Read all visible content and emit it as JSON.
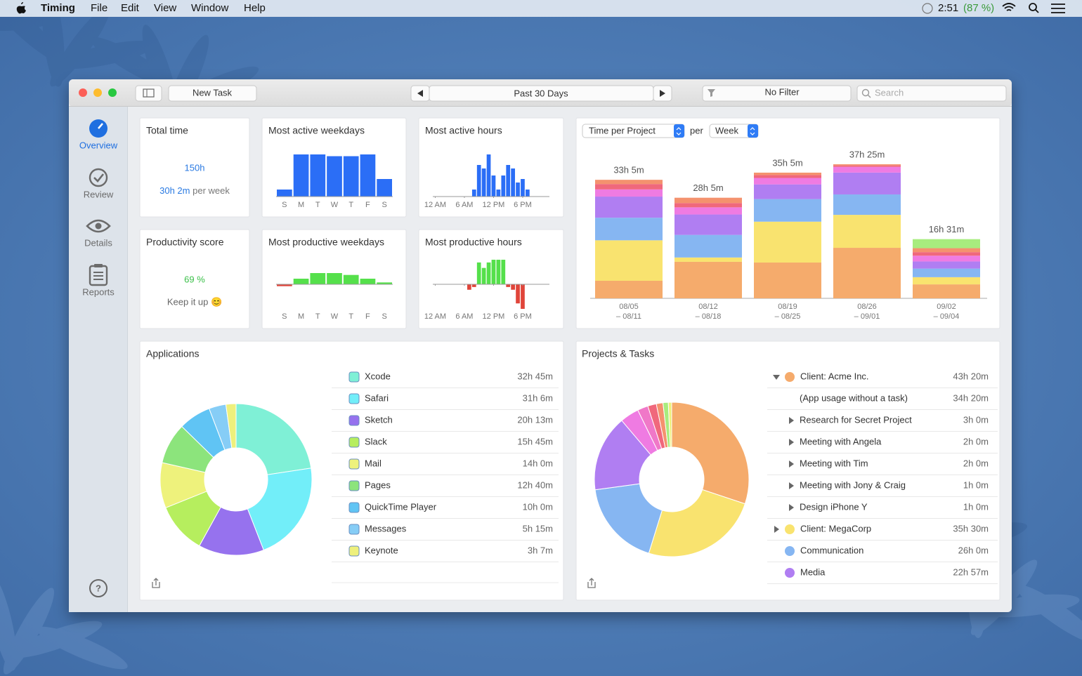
{
  "menubar": {
    "app": "Timing",
    "menus": [
      "File",
      "Edit",
      "View",
      "Window",
      "Help"
    ],
    "clock": "2:51",
    "battery": "(87 %)"
  },
  "toolbar": {
    "new_task": "New Task",
    "range": "Past 30 Days",
    "filter": "No Filter",
    "search": "Search"
  },
  "sidebar": {
    "items": [
      "Overview",
      "Review",
      "Details",
      "Reports"
    ],
    "selected": 0
  },
  "total_time": {
    "title": "Total time",
    "value": "150h",
    "per_week": "30h 2m",
    "per_week_unit": "per week"
  },
  "productivity": {
    "title": "Productivity score",
    "value": "69 %",
    "note": "Keep it up 😊"
  },
  "active_weekdays": {
    "type": "bar",
    "title": "Most active weekdays",
    "categories": [
      "S",
      "M",
      "T",
      "W",
      "T",
      "F",
      "S"
    ],
    "values": [
      4,
      24,
      24,
      23,
      23,
      24,
      10
    ],
    "color": "#2b6ef6"
  },
  "active_hours": {
    "type": "bar",
    "title": "Most active hours",
    "values": [
      0,
      0,
      0,
      0,
      0,
      0,
      0,
      0,
      2,
      9,
      8,
      12,
      6,
      2,
      6,
      9,
      8,
      4,
      5,
      2,
      0,
      0,
      0,
      0
    ],
    "xticks": [
      {
        "value": 0,
        "label": "12 AM"
      },
      {
        "value": 6,
        "label": "6 AM"
      },
      {
        "value": 12,
        "label": "12 PM"
      },
      {
        "value": 18,
        "label": "6 PM"
      }
    ],
    "color": "#2b6ef6"
  },
  "productive_weekdays": {
    "type": "bar",
    "title": "Most productive weekdays",
    "categories": [
      "S",
      "M",
      "T",
      "W",
      "T",
      "F",
      "S"
    ],
    "values": [
      -1,
      3,
      6,
      6,
      5,
      3,
      1
    ],
    "color": "#55e04b",
    "negative_color": "#e0453a"
  },
  "productive_hours": {
    "type": "bar",
    "title": "Most productive hours",
    "values": [
      0,
      0,
      0,
      0,
      0,
      0,
      0,
      -2,
      -1,
      8,
      6,
      8,
      9,
      9,
      9,
      -1,
      -2,
      -7,
      -9,
      0,
      0,
      0,
      0,
      0
    ],
    "xticks": [
      {
        "value": 0,
        "label": "12 AM"
      },
      {
        "value": 6,
        "label": "6 AM"
      },
      {
        "value": 12,
        "label": "12 PM"
      },
      {
        "value": 18,
        "label": "6 PM"
      }
    ],
    "color": "#55e04b",
    "negative_color": "#e0453a"
  },
  "weekly": {
    "type": "bar",
    "stacked": true,
    "metric": "Time per Project",
    "per": "per",
    "interval": "Week",
    "categories": [
      [
        "08/05",
        "– 08/11"
      ],
      [
        "08/12",
        "– 08/18"
      ],
      [
        "08/19",
        "– 08/25"
      ],
      [
        "08/26",
        "– 09/01"
      ],
      [
        "09/02",
        "– 09/04"
      ]
    ],
    "total_labels": [
      "33h 5m",
      "28h 5m",
      "35h 5m",
      "37h 25m",
      "16h 31m"
    ],
    "series": [
      {
        "color": "#f5ab6c",
        "values": [
          4.9,
          10.2,
          10.0,
          14.1,
          3.9
        ]
      },
      {
        "color": "#f9e36f",
        "values": [
          11.3,
          1.2,
          11.4,
          9.2,
          2.0
        ]
      },
      {
        "color": "#86b6f2",
        "values": [
          6.3,
          6.3,
          6.3,
          5.7,
          2.4
        ]
      },
      {
        "color": "#b07ef2",
        "values": [
          5.9,
          5.7,
          4.1,
          6.1,
          2.0
        ]
      },
      {
        "color": "#ef7be2",
        "values": [
          2.0,
          2.0,
          1.8,
          1.6,
          1.6
        ]
      },
      {
        "color": "#f0687c",
        "values": [
          1.5,
          1.2,
          0.8,
          0.4,
          1.0
        ]
      },
      {
        "color": "#f4926e",
        "values": [
          1.18,
          1.48,
          0.68,
          0.32,
          1.1
        ]
      },
      {
        "color": "#a8ec7e",
        "values": [
          0,
          0,
          0,
          0,
          2.52
        ]
      }
    ]
  },
  "applications": {
    "type": "pie",
    "title": "Applications",
    "items": [
      {
        "name": "Xcode",
        "value": 32.75,
        "value_label": "32h 45m",
        "color": "#7ff0d6"
      },
      {
        "name": "Safari",
        "value": 31.1,
        "value_label": "31h 6m",
        "color": "#72eef9"
      },
      {
        "name": "Sketch",
        "value": 20.22,
        "value_label": "20h 13m",
        "color": "#9672ee"
      },
      {
        "name": "Slack",
        "value": 15.75,
        "value_label": "15h 45m",
        "color": "#b6ee5e"
      },
      {
        "name": "Mail",
        "value": 14,
        "value_label": "14h 0m",
        "color": "#eef27c"
      },
      {
        "name": "Pages",
        "value": 12.67,
        "value_label": "12h 40m",
        "color": "#8ce47c"
      },
      {
        "name": "QuickTime Player",
        "value": 10,
        "value_label": "10h 0m",
        "color": "#60c4f4"
      },
      {
        "name": "Messages",
        "value": 5.25,
        "value_label": "5h 15m",
        "color": "#86cdf6"
      },
      {
        "name": "Keynote",
        "value": 3.12,
        "value_label": "3h 7m",
        "color": "#eef07c"
      }
    ]
  },
  "projects": {
    "type": "pie",
    "title": "Projects & Tasks",
    "items": [
      {
        "name": "Client: Acme Inc.",
        "value": 43.33,
        "value_label": "43h 20m",
        "color": "#f5ab6c",
        "expanded": true,
        "tasks": [
          {
            "name": "(App usage without a task)",
            "value_label": "34h 20m"
          },
          {
            "name": "Research for Secret Project",
            "value_label": "3h 0m",
            "has_subtasks": true
          },
          {
            "name": "Meeting with Angela",
            "value_label": "2h 0m",
            "has_subtasks": true
          },
          {
            "name": "Meeting with Tim",
            "value_label": "2h 0m",
            "has_subtasks": true
          },
          {
            "name": "Meeting with Jony & Craig",
            "value_label": "1h 0m",
            "has_subtasks": true
          },
          {
            "name": "Design iPhone Y",
            "value_label": "1h 0m",
            "has_subtasks": true
          }
        ]
      },
      {
        "name": "Client: MegaCorp",
        "value": 35.5,
        "value_label": "35h 30m",
        "color": "#f9e36f",
        "expanded": false
      },
      {
        "name": "Communication",
        "value": 26,
        "value_label": "26h 0m",
        "color": "#86b6f2"
      },
      {
        "name": "Media",
        "value": 22.95,
        "value_label": "22h 57m",
        "color": "#b07ef2"
      }
    ],
    "other_slices": {
      "values": [
        5.7,
        3.2,
        2.6,
        2.0,
        1.6,
        1.0
      ],
      "colors": [
        "#ef7be2",
        "#f078c8",
        "#f0687c",
        "#f4926e",
        "#a8ec7e",
        "#eef07c"
      ]
    }
  }
}
